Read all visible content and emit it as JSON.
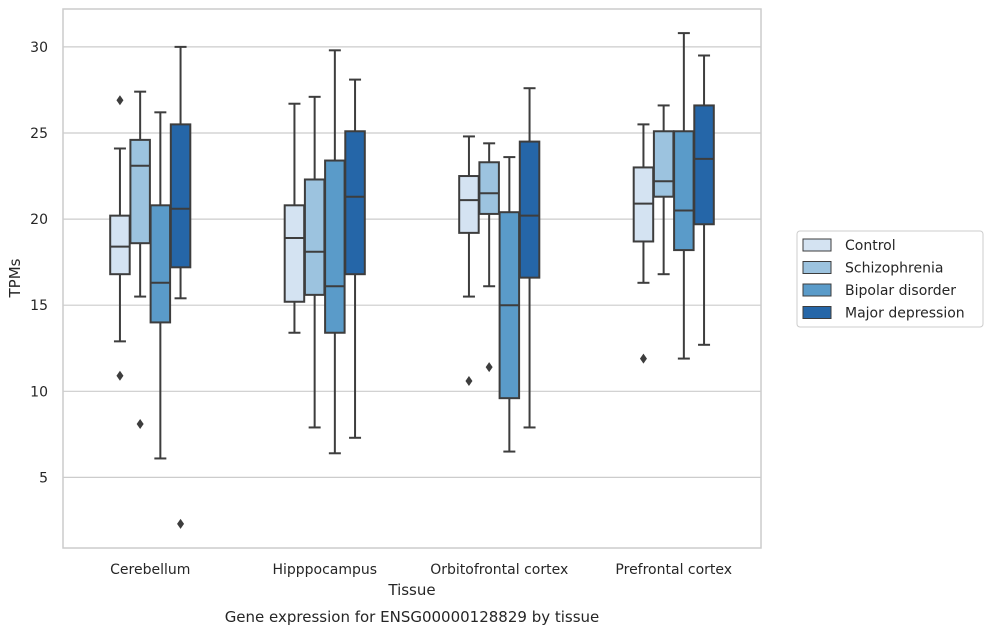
{
  "chart_data": {
    "type": "box",
    "xlabel": "Tissue",
    "ylabel": "TPMs",
    "caption": "Gene expression for ENSG00000128829 by tissue",
    "categories": [
      "Cerebellum",
      "Hipppocampus",
      "Orbitofrontal cortex",
      "Prefrontal cortex"
    ],
    "ylim": [
      0.9,
      32.2
    ],
    "yticks": [
      5,
      10,
      15,
      20,
      25,
      30
    ],
    "grid": true,
    "legend_position": "right",
    "series": [
      {
        "name": "Control",
        "color": "#d4e3f2",
        "boxes": [
          {
            "whisker_low": 12.9,
            "q1": 16.8,
            "median": 18.4,
            "q3": 20.2,
            "whisker_high": 24.1,
            "outliers": [
              26.9,
              10.9
            ]
          },
          {
            "whisker_low": 13.4,
            "q1": 15.2,
            "median": 18.9,
            "q3": 20.8,
            "whisker_high": 26.7,
            "outliers": []
          },
          {
            "whisker_low": 15.5,
            "q1": 19.2,
            "median": 21.1,
            "q3": 22.5,
            "whisker_high": 24.8,
            "outliers": [
              10.6
            ]
          },
          {
            "whisker_low": 16.3,
            "q1": 18.7,
            "median": 20.9,
            "q3": 23.0,
            "whisker_high": 25.5,
            "outliers": [
              11.9
            ]
          }
        ]
      },
      {
        "name": "Schizophrenia",
        "color": "#9cc3df",
        "boxes": [
          {
            "whisker_low": 15.5,
            "q1": 18.6,
            "median": 23.1,
            "q3": 24.6,
            "whisker_high": 27.4,
            "outliers": [
              8.1
            ]
          },
          {
            "whisker_low": 7.9,
            "q1": 15.6,
            "median": 18.1,
            "q3": 22.3,
            "whisker_high": 27.1,
            "outliers": []
          },
          {
            "whisker_low": 16.1,
            "q1": 20.3,
            "median": 21.5,
            "q3": 23.3,
            "whisker_high": 24.4,
            "outliers": [
              11.4
            ]
          },
          {
            "whisker_low": 16.8,
            "q1": 21.3,
            "median": 22.2,
            "q3": 25.1,
            "whisker_high": 26.6,
            "outliers": []
          }
        ]
      },
      {
        "name": "Bipolar disorder",
        "color": "#5a9bc9",
        "boxes": [
          {
            "whisker_low": 6.1,
            "q1": 14.0,
            "median": 16.3,
            "q3": 20.8,
            "whisker_high": 26.2,
            "outliers": []
          },
          {
            "whisker_low": 6.4,
            "q1": 13.4,
            "median": 16.1,
            "q3": 23.4,
            "whisker_high": 29.8,
            "outliers": []
          },
          {
            "whisker_low": 6.5,
            "q1": 9.6,
            "median": 15.0,
            "q3": 20.4,
            "whisker_high": 23.6,
            "outliers": []
          },
          {
            "whisker_low": 11.9,
            "q1": 18.2,
            "median": 20.5,
            "q3": 25.1,
            "whisker_high": 30.8,
            "outliers": []
          }
        ]
      },
      {
        "name": "Major depression",
        "color": "#2566a8",
        "boxes": [
          {
            "whisker_low": 15.4,
            "q1": 17.2,
            "median": 20.6,
            "q3": 25.5,
            "whisker_high": 30.0,
            "outliers": [
              2.3
            ]
          },
          {
            "whisker_low": 7.3,
            "q1": 16.8,
            "median": 21.3,
            "q3": 25.1,
            "whisker_high": 28.1,
            "outliers": []
          },
          {
            "whisker_low": 7.9,
            "q1": 16.6,
            "median": 20.2,
            "q3": 24.5,
            "whisker_high": 27.6,
            "outliers": []
          },
          {
            "whisker_low": 12.7,
            "q1": 19.7,
            "median": 23.5,
            "q3": 26.6,
            "whisker_high": 29.5,
            "outliers": []
          }
        ]
      }
    ]
  }
}
